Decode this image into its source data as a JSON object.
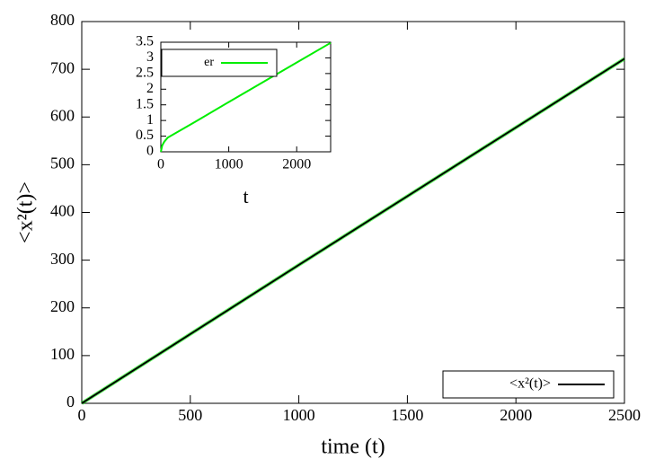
{
  "chart_data": [
    {
      "type": "line",
      "xlabel": "time (t)",
      "ylabel": "<x²(t)>",
      "xlim": [
        0,
        2500
      ],
      "xticks": [
        0,
        500,
        1000,
        1500,
        2000,
        2500
      ],
      "ylim": [
        0,
        800
      ],
      "yticks": [
        0,
        100,
        200,
        300,
        400,
        500,
        600,
        700,
        800
      ],
      "legend": "lower right",
      "series": [
        {
          "name": "<x²(t)>",
          "color": "#000000",
          "error_color": "#00ff00",
          "x": [
            0,
            500,
            1000,
            1500,
            2000,
            2500
          ],
          "values": [
            0,
            145,
            290,
            434,
            578,
            722
          ]
        }
      ]
    },
    {
      "type": "line",
      "xlabel": "t",
      "xlim": [
        0,
        2500
      ],
      "xticks": [
        0,
        1000,
        2000
      ],
      "ylim": [
        0,
        3.5
      ],
      "yticks": [
        0,
        0.5,
        1,
        1.5,
        2,
        2.5,
        3,
        3.5
      ],
      "legend": "upper left",
      "series": [
        {
          "name": "er",
          "color": "#00ee00",
          "x": [
            0,
            20,
            50,
            100,
            500,
            1000,
            1500,
            2000,
            2500
          ],
          "values": [
            0,
            0.2,
            0.32,
            0.45,
            0.95,
            1.59,
            2.22,
            2.85,
            3.48
          ]
        }
      ]
    }
  ]
}
